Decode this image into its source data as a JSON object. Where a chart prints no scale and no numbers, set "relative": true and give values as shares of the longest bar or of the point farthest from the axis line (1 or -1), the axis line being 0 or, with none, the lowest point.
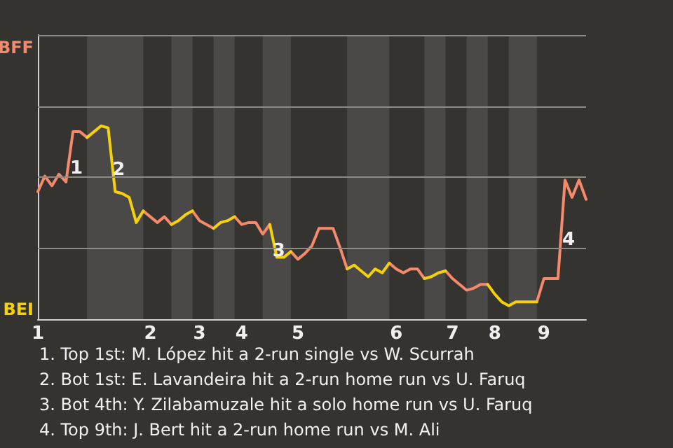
{
  "chart_data": {
    "type": "line",
    "relative": true,
    "categories": [
      "1",
      null,
      null,
      null,
      null,
      null,
      null,
      null,
      null,
      null,
      null,
      null,
      null,
      null,
      null,
      null,
      "2",
      null,
      null,
      null,
      null,
      null,
      null,
      "3",
      null,
      null,
      null,
      null,
      null,
      "4",
      null,
      null,
      null,
      null,
      null,
      null,
      null,
      "5",
      null,
      null,
      null,
      null,
      null,
      null,
      null,
      null,
      null,
      null,
      null,
      null,
      null,
      "6",
      null,
      null,
      null,
      null,
      null,
      null,
      null,
      "7",
      null,
      null,
      null,
      null,
      null,
      "8",
      null,
      null,
      null,
      null,
      null,
      null,
      "9",
      null,
      null,
      null,
      null,
      null,
      null
    ],
    "marker": "none",
    "line_style": "solid",
    "ref_lines": [
      {
        "axis": "y",
        "value": 0.37,
        "color": "#8d8b88"
      },
      {
        "axis": "y",
        "value": 0.74,
        "color": "#8d8b88"
      },
      {
        "axis": "y",
        "value": 1.1,
        "color": "#8d8b88"
      },
      {
        "axis": "y",
        "value": 1.47,
        "color": "#8d8b88"
      }
    ],
    "series": [
      {
        "color": "#f4896b",
        "values": [
          0.66,
          0.74,
          0.69,
          0.75,
          0.71,
          0.97,
          0.97,
          0.94,
          null,
          null,
          null,
          null,
          null,
          null,
          null,
          0.56,
          0.53,
          0.5,
          0.53,
          0.49,
          null,
          null,
          0.56,
          0.51,
          0.49,
          0.47,
          null,
          null,
          0.53,
          0.49,
          0.5,
          0.5,
          0.44,
          0.49,
          null,
          null,
          0.35,
          0.31,
          0.34,
          0.38,
          0.47,
          0.47,
          0.47,
          0.37,
          0.26,
          null,
          null,
          null,
          null,
          null,
          0.29,
          0.26,
          0.24,
          0.26,
          0.26,
          0.21,
          null,
          null,
          0.25,
          0.21,
          0.18,
          0.15,
          0.16,
          0.18,
          0.18,
          null,
          null,
          null,
          null,
          null,
          null,
          0.09,
          0.21,
          0.21,
          0.21,
          0.72,
          0.63,
          0.72,
          0.62
        ]
      },
      {
        "color": "#f5d10a",
        "values": [
          null,
          null,
          null,
          null,
          null,
          null,
          null,
          0.94,
          0.97,
          1,
          0.99,
          0.66,
          0.65,
          0.63,
          0.5,
          0.56,
          null,
          null,
          null,
          0.49,
          0.51,
          0.54,
          0.56,
          null,
          null,
          0.47,
          0.5,
          0.51,
          0.53,
          null,
          null,
          null,
          null,
          0.49,
          0.32,
          0.32,
          0.35,
          null,
          null,
          null,
          null,
          null,
          null,
          null,
          0.26,
          0.28,
          0.25,
          0.22,
          0.26,
          0.24,
          0.29,
          null,
          null,
          null,
          null,
          0.21,
          0.22,
          0.24,
          0.25,
          null,
          null,
          null,
          null,
          null,
          0.18,
          0.13,
          0.09,
          0.07,
          0.09,
          0.09,
          0.09,
          0.09,
          null,
          null,
          null,
          null,
          null,
          null,
          null
        ]
      }
    ],
    "annotations": [
      "BFF",
      "BEI",
      "1",
      "2",
      "3",
      "4",
      "1. Top 1st: M. López hit a 2-run single vs W. Scurrah",
      "2. Bot 1st: E. Lavandeira hit a 2-run home run vs U. Faruq",
      "3. Bot 4th: Y. Zilabamuzale hit a solo home run vs U. Faruq",
      "4. Top 9th: J. Bert hit a 2-run home run vs M. Ali"
    ]
  }
}
